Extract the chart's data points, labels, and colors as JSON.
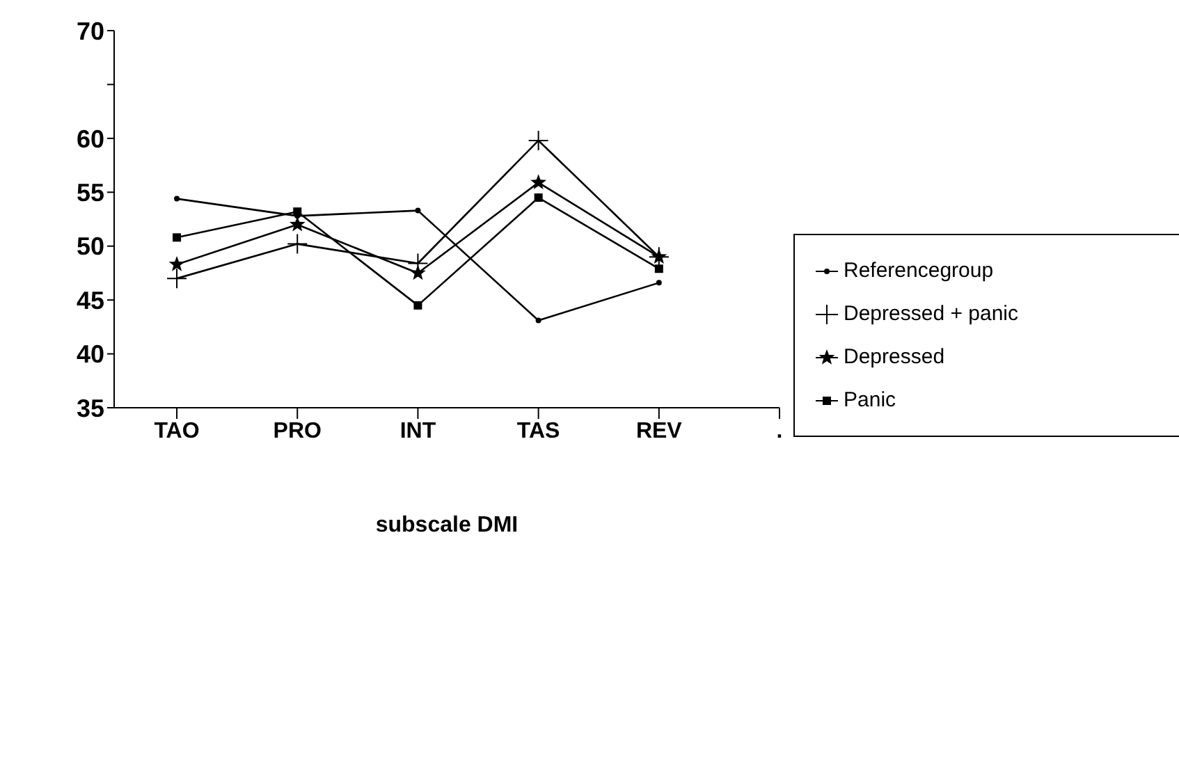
{
  "chart_data": {
    "type": "line",
    "xlabel": "subscale DMI",
    "categories": [
      "TAO",
      "PRO",
      "INT",
      "TAS",
      "REV",
      "."
    ],
    "series": [
      {
        "name": "Referencegroup",
        "color": "#000000",
        "marker": "circle",
        "values": [
          54.4,
          52.8,
          53.3,
          43.1,
          46.6,
          null
        ]
      },
      {
        "name": "Depressed + panic",
        "color": "#000000",
        "marker": "cross",
        "values": [
          47.0,
          50.2,
          48.4,
          59.8,
          49.0,
          null
        ]
      },
      {
        "name": "Depressed",
        "color": "#000000",
        "marker": "star",
        "values": [
          48.3,
          52.0,
          47.5,
          55.9,
          49.0,
          null
        ]
      },
      {
        "name": "Panic",
        "color": "#000000",
        "marker": "square",
        "values": [
          50.8,
          53.2,
          44.5,
          54.5,
          47.9,
          null
        ]
      }
    ],
    "ylim": [
      35,
      70
    ],
    "yticks": [
      35,
      40,
      45,
      50,
      55,
      60,
      {
        "value": 65,
        "label": null
      },
      70
    ],
    "grid": false,
    "legend": "right",
    "line_style": "solid"
  }
}
